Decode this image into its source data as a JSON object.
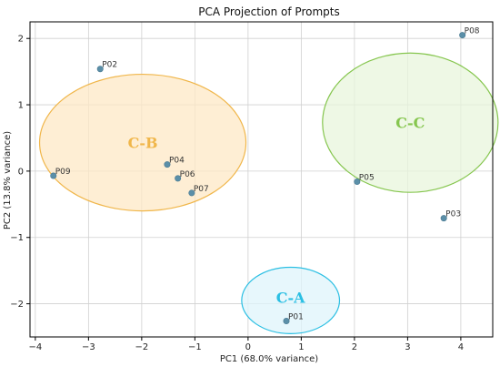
{
  "chart_data": {
    "type": "scatter",
    "title": "PCA Projection of Prompts",
    "xlabel": "PC1 (68.0% variance)",
    "ylabel": "PC2 (13.8% variance)",
    "xlim": [
      -4.1,
      4.6
    ],
    "ylim": [
      -2.5,
      2.25
    ],
    "xticks": [
      -4,
      -3,
      -2,
      -1,
      0,
      1,
      2,
      3,
      4
    ],
    "yticks": [
      -2,
      -1,
      0,
      1,
      2
    ],
    "grid": true,
    "point_color": "#5b8fa8",
    "points": [
      {
        "label": "P01",
        "x": 0.72,
        "y": -2.26
      },
      {
        "label": "P02",
        "x": -2.78,
        "y": 1.54
      },
      {
        "label": "P03",
        "x": 3.68,
        "y": -0.71
      },
      {
        "label": "P04",
        "x": -1.52,
        "y": 0.1
      },
      {
        "label": "P05",
        "x": 2.05,
        "y": -0.16
      },
      {
        "label": "P06",
        "x": -1.32,
        "y": -0.11
      },
      {
        "label": "P07",
        "x": -1.06,
        "y": -0.33
      },
      {
        "label": "P08",
        "x": 4.03,
        "y": 2.05
      },
      {
        "label": "P09",
        "x": -3.66,
        "y": -0.07
      }
    ],
    "clusters": [
      {
        "name": "C-A",
        "cx": 0.8,
        "cy": -1.95,
        "rx": 0.92,
        "ry": 0.5,
        "stroke": "#2bbfe3",
        "fill": "#dff4fb",
        "label_x": 0.8,
        "label_y": -1.9
      },
      {
        "name": "C-B",
        "cx": -1.98,
        "cy": 0.43,
        "rx": 1.94,
        "ry": 1.03,
        "stroke": "#f0b64a",
        "fill": "#fde8c6",
        "label_x": -1.98,
        "label_y": 0.43
      },
      {
        "name": "C-C",
        "cx": 3.05,
        "cy": 0.73,
        "rx": 1.65,
        "ry": 1.05,
        "stroke": "#86c64f",
        "fill": "#e8f5dc",
        "label_x": 3.05,
        "label_y": 0.73
      }
    ]
  }
}
